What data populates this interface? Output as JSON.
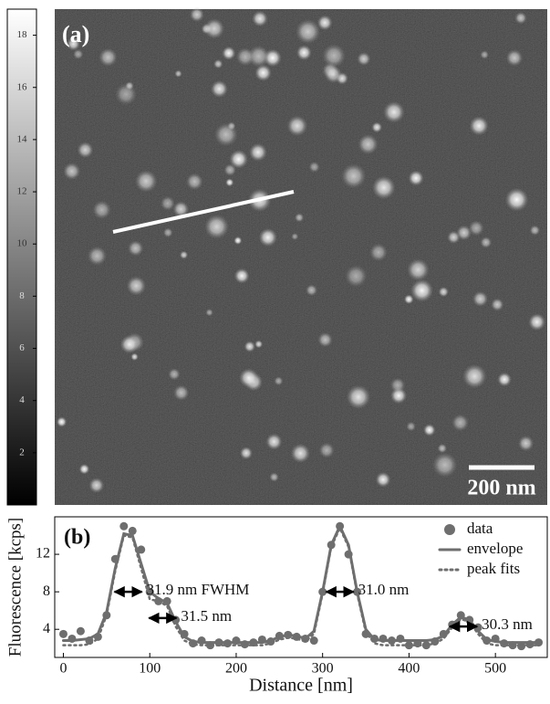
{
  "panel_a": {
    "label": "(a)",
    "scale_bar": "200 nm"
  },
  "colorbar": {
    "lim": [
      0,
      19
    ],
    "ticks": [
      2,
      4,
      6,
      8,
      10,
      12,
      14,
      16,
      18
    ]
  },
  "chart_data": {
    "type": "line",
    "label": "(b)",
    "xlabel": "Distance [nm]",
    "ylabel": "Fluorescence [kcps]",
    "xlim": [
      -10,
      560
    ],
    "ylim": [
      1,
      16
    ],
    "xticks": [
      0,
      100,
      200,
      300,
      400,
      500
    ],
    "yticks": [
      4,
      8,
      12
    ],
    "x": [
      0,
      10,
      20,
      30,
      40,
      50,
      60,
      70,
      80,
      90,
      100,
      110,
      120,
      130,
      140,
      150,
      160,
      170,
      180,
      190,
      200,
      210,
      220,
      230,
      240,
      250,
      260,
      270,
      280,
      290,
      300,
      310,
      320,
      330,
      340,
      350,
      360,
      370,
      380,
      390,
      400,
      410,
      420,
      430,
      440,
      450,
      460,
      470,
      480,
      490,
      500,
      510,
      520,
      530,
      540,
      550
    ],
    "series": [
      {
        "name": "data",
        "style": "points",
        "color": "#6e6e6e",
        "values": [
          3.5,
          3.0,
          3.8,
          2.8,
          3.2,
          5.5,
          11.5,
          15,
          14.5,
          12.5,
          8,
          7,
          7,
          5,
          3.5,
          2.5,
          2.8,
          2.3,
          2.6,
          2.5,
          2.8,
          2.4,
          2.6,
          2.9,
          2.7,
          3.3,
          3.4,
          3.2,
          3.0,
          2.8,
          8,
          13,
          15,
          12,
          8,
          3.5,
          3.0,
          3.0,
          2.8,
          3.0,
          2.3,
          2.5,
          2.3,
          2.7,
          3.5,
          4.5,
          5.5,
          5,
          4.2,
          2.8,
          3.0,
          2.5,
          2.3,
          2.2,
          2.4,
          2.6
        ]
      },
      {
        "name": "envelope",
        "style": "solid",
        "color": "#6e6e6e",
        "values": [
          2.8,
          2.8,
          2.9,
          3.0,
          3.5,
          5.8,
          10.5,
          14.2,
          14,
          11,
          8,
          7.3,
          6.8,
          4.8,
          3.2,
          2.7,
          2.6,
          2.6,
          2.6,
          2.6,
          2.6,
          2.6,
          2.6,
          2.6,
          2.8,
          3.2,
          3.4,
          3.3,
          3.0,
          3.8,
          8,
          13,
          15,
          13,
          8,
          4,
          2.9,
          2.8,
          2.8,
          2.8,
          2.8,
          2.8,
          2.8,
          2.9,
          3.3,
          4.5,
          5.3,
          5.0,
          3.8,
          2.9,
          2.7,
          2.6,
          2.6,
          2.6,
          2.6,
          2.6
        ]
      },
      {
        "name": "peak fits",
        "style": "dotted",
        "color": "#6e6e6e",
        "values": [
          2.3,
          2.3,
          2.3,
          2.4,
          3.0,
          5.5,
          10.2,
          14,
          13.8,
          10.5,
          7.2,
          7.0,
          6.5,
          4.3,
          2.8,
          2.4,
          2.3,
          2.3,
          2.3,
          2.3,
          2.3,
          2.3,
          2.3,
          2.3,
          2.5,
          2.9,
          3.1,
          3.0,
          2.7,
          3.5,
          7.8,
          12.8,
          14.8,
          12.8,
          7.8,
          3.7,
          2.5,
          2.3,
          2.3,
          2.3,
          2.3,
          2.3,
          2.3,
          2.5,
          3.0,
          4.2,
          5.1,
          4.8,
          3.5,
          2.5,
          2.3,
          2.3,
          2.3,
          2.3,
          2.3,
          2.3
        ]
      }
    ],
    "annotations": [
      {
        "text": "31.9 nm FWHM",
        "x": 75,
        "y": 8
      },
      {
        "text": "31.5 nm",
        "x": 115,
        "y": 5.2
      },
      {
        "text": "31.0 nm",
        "x": 320,
        "y": 8
      },
      {
        "text": "30.3 nm",
        "x": 463,
        "y": 4.3
      }
    ]
  }
}
